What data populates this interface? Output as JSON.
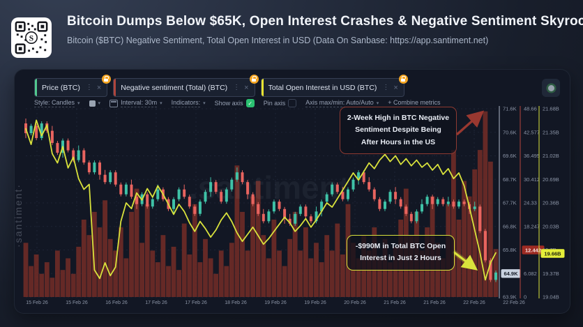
{
  "header": {
    "title": "Bitcoin Dumps Below $65K, Open Interest Crashes & Negative Sentiment Skyrockets",
    "subtitle": "Bitcoin ($BTC) Negative Sentiment, Total Open Interest in USD (Data On Sanbase: https://app.santiment.net)"
  },
  "metric_tabs": [
    {
      "label": "Price (BTC)",
      "accent": "#52c98f"
    },
    {
      "label": "Negative sentiment (Total) (BTC)",
      "accent": "#b0453c"
    },
    {
      "label": "Total Open Interest in USD (BTC)",
      "accent": "#e8e332"
    }
  ],
  "toolbar": {
    "style_label": "Style: Candles",
    "interval_label": "Interval: 30m",
    "indicators_label": "Indicators:",
    "show_axis_label": "Show axis",
    "show_axis_checked": true,
    "pin_axis_label": "Pin axis",
    "pin_axis_checked": false,
    "axis_maxmin_label": "Axis max/min: Auto/Auto",
    "combine_label": "+  Combine metrics",
    "check_color": "#2bc171"
  },
  "watermark": {
    "vertical": "·santiment·",
    "center": ".santiment"
  },
  "annotations": [
    {
      "text": "2-Week High in BTC Negative Sentiment Despite Being After Hours in the US",
      "border": "#8f3a32",
      "arrow_color": "#993830"
    },
    {
      "text": "-$990M in Total BTC Open Interest in Just 2 Hours",
      "border": "#d9e23c",
      "arrow_color": "#d9e23c"
    }
  ],
  "chart_data": {
    "type": "candlestick+bar+line",
    "x_axis_labels": [
      "15 Feb 26",
      "15 Feb 26",
      "16 Feb 26",
      "17 Feb 26",
      "17 Feb 26",
      "18 Feb 26",
      "19 Feb 26",
      "19 Feb 26",
      "20 Feb 26",
      "21 Feb 26",
      "21 Feb 26",
      "22 Feb 26",
      "22 Feb 26"
    ],
    "axes": {
      "price": {
        "line_color": "#aab4c4",
        "range_k": [
          63.9,
          71.6
        ],
        "ticks": [
          "71.6K",
          "70.6K",
          "69.6K",
          "68.7K",
          "67.7K",
          "66.8K",
          "65.8K",
          "64.9K",
          "63.9K"
        ],
        "current_value": "64.9K",
        "current_index": 7,
        "badge_bg": "#c9d2df",
        "badge_fg": "#161b26"
      },
      "sentiment": {
        "line_color": "#b5443c",
        "range": [
          0,
          48.66
        ],
        "ticks": [
          "48.66",
          "42.577",
          "36.495",
          "30.412",
          "24.33",
          "18.247",
          "12.442",
          "6.082",
          "0"
        ],
        "current_value": "12.442",
        "current_index": 6,
        "badge_bg": "#9e2b23",
        "badge_fg": "#f6e2e0"
      },
      "open_interest": {
        "line_color": "#d9e23c",
        "range_b": [
          19.04,
          21.68
        ],
        "ticks": [
          "21.68B",
          "21.35B",
          "21.02B",
          "20.69B",
          "20.36B",
          "20.03B",
          "19.7B",
          "19.37B",
          "19.04B"
        ],
        "current_value": "19.66B",
        "current_index": 6,
        "badge_bg": "#e4ee39",
        "badge_fg": "#23260e"
      }
    },
    "series": [
      {
        "name": "Price (BTC)",
        "type": "candle",
        "unit": "K USD",
        "up_color": "#3fc2a7",
        "down_color": "#e8645f",
        "close": [
          70.6,
          70.9,
          70.4,
          71.0,
          70.7,
          70.2,
          69.8,
          70.3,
          69.9,
          69.5,
          69.9,
          69.4,
          69.0,
          69.4,
          68.9,
          68.6,
          69.0,
          68.5,
          68.1,
          68.5,
          68.0,
          67.7,
          68.1,
          67.6,
          67.9,
          68.3,
          67.9,
          67.5,
          67.9,
          68.3,
          68.0,
          67.6,
          67.3,
          67.8,
          68.2,
          68.6,
          68.2,
          67.8,
          68.3,
          68.7,
          69.0,
          68.6,
          68.1,
          67.7,
          67.3,
          67.0,
          67.4,
          67.8,
          67.5,
          67.1,
          66.9,
          67.3,
          67.6,
          67.2,
          67.0,
          67.4,
          67.8,
          68.1,
          68.5,
          68.2,
          67.9,
          68.3,
          68.7,
          69.0,
          68.6,
          68.3,
          67.9,
          67.5,
          67.8,
          68.2,
          67.9,
          67.6,
          67.3,
          67.0,
          67.4,
          67.7,
          68.0,
          67.7,
          67.9,
          67.7,
          67.8,
          67.6,
          67.8,
          67.7,
          67.5,
          67.6,
          66.6,
          65.4,
          64.6,
          64.9
        ]
      },
      {
        "name": "Negative sentiment (Total) (BTC)",
        "type": "bar",
        "color": "#6d2b27",
        "values": [
          14,
          8,
          11,
          6,
          9,
          5,
          12,
          7,
          10,
          6,
          13,
          20,
          16,
          22,
          18,
          25,
          15,
          12,
          18,
          10,
          22,
          28,
          14,
          24,
          12,
          9,
          16,
          8,
          13,
          7,
          19,
          11,
          24,
          9,
          15,
          10,
          6,
          12,
          8,
          14,
          34,
          22,
          12,
          26,
          30,
          16,
          10,
          20,
          12,
          8,
          15,
          22,
          12,
          18,
          10,
          14,
          9,
          16,
          12,
          19,
          11,
          24,
          14,
          10,
          16,
          12,
          18,
          10,
          15,
          9,
          13,
          20,
          28,
          16,
          22,
          12,
          18,
          26,
          14,
          10,
          24,
          38,
          20,
          30,
          26,
          33,
          38,
          48,
          35,
          12.4
        ]
      },
      {
        "name": "Total Open Interest in USD (BTC)",
        "type": "line",
        "unit": "B USD",
        "color": "#d9e23c",
        "values": [
          21.4,
          21.18,
          21.52,
          21.3,
          21.45,
          21.05,
          20.92,
          21.15,
          20.85,
          21.0,
          20.7,
          20.55,
          20.62,
          19.42,
          19.3,
          19.52,
          19.34,
          19.46,
          20.1,
          20.36,
          20.28,
          20.5,
          20.4,
          20.56,
          20.44,
          20.6,
          20.48,
          20.34,
          20.2,
          20.34,
          20.24,
          20.08,
          19.96,
          20.1,
          20.0,
          19.88,
          19.98,
          20.12,
          20.22,
          20.1,
          19.94,
          19.82,
          19.92,
          20.02,
          19.9,
          19.78,
          19.86,
          19.96,
          20.06,
          20.16,
          20.08,
          19.96,
          20.04,
          20.14,
          20.02,
          20.12,
          20.24,
          20.36,
          20.3,
          20.42,
          20.54,
          20.66,
          20.78,
          20.68,
          20.8,
          20.92,
          20.84,
          20.96,
          21.04,
          20.94,
          21.02,
          20.9,
          20.98,
          20.88,
          20.96,
          20.86,
          20.92,
          20.82,
          20.9,
          20.76,
          20.84,
          20.7,
          20.78,
          20.6,
          20.3,
          19.98,
          19.66,
          19.28,
          19.52,
          19.66
        ]
      }
    ]
  }
}
